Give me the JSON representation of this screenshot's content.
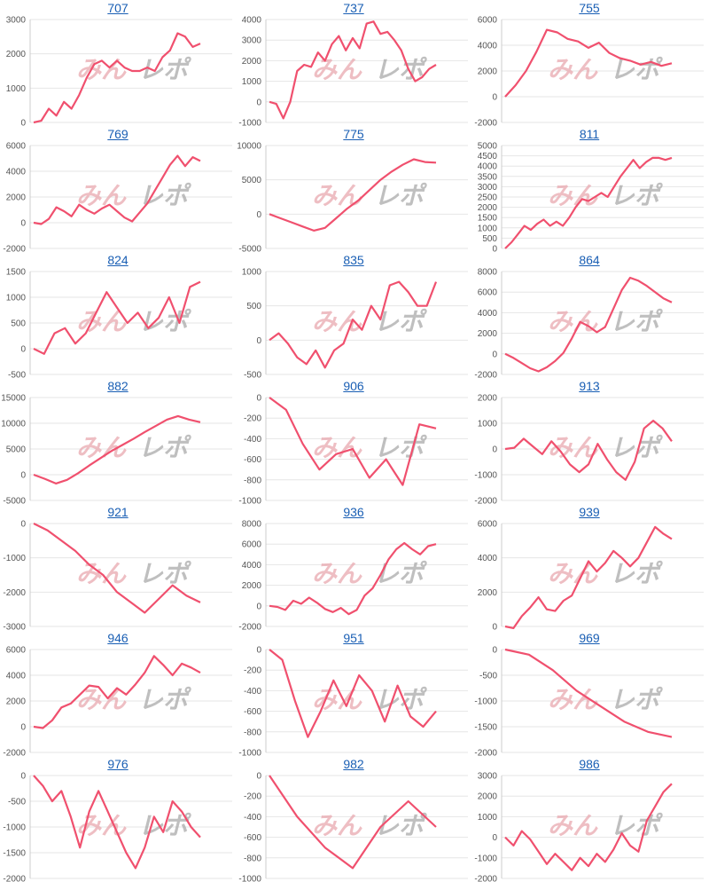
{
  "colors": {
    "line": "#f0506e",
    "grid": "#e6e6e6",
    "axis": "#cccccc",
    "title": "#1a5fb4",
    "watermark_pink": "#e9a9b0",
    "watermark_gray": "#aaaaaa"
  },
  "watermark": {
    "part1": "みん",
    "part2": "レポ"
  },
  "chart_data": [
    {
      "type": "line",
      "title": "707",
      "yticks": [
        0,
        1000,
        2000,
        3000
      ],
      "ylim": [
        0,
        3000
      ],
      "values": [
        0,
        50,
        400,
        200,
        600,
        400,
        800,
        1300,
        1700,
        1800,
        1600,
        1800,
        1600,
        1500,
        1500,
        1600,
        1500,
        1900,
        2100,
        2600,
        2500,
        2200,
        2300
      ]
    },
    {
      "type": "line",
      "title": "737",
      "yticks": [
        -1000,
        0,
        1000,
        2000,
        3000,
        4000
      ],
      "ylim": [
        -1000,
        4000
      ],
      "values": [
        0,
        -100,
        -800,
        0,
        1500,
        1800,
        1700,
        2400,
        2000,
        2800,
        3200,
        2500,
        3100,
        2600,
        3800,
        3900,
        3300,
        3400,
        3000,
        2500,
        1600,
        1000,
        1200,
        1600,
        1800
      ]
    },
    {
      "type": "line",
      "title": "755",
      "yticks": [
        -2000,
        0,
        2000,
        4000,
        6000
      ],
      "ylim": [
        -2000,
        6000
      ],
      "values": [
        0,
        900,
        2000,
        3500,
        5200,
        5000,
        4500,
        4300,
        3800,
        4200,
        3400,
        3000,
        2800,
        2500,
        2700,
        2400,
        2600
      ]
    },
    {
      "type": "line",
      "title": "769",
      "yticks": [
        -2000,
        0,
        2000,
        4000,
        6000
      ],
      "ylim": [
        -2000,
        6000
      ],
      "values": [
        0,
        -100,
        300,
        1200,
        900,
        500,
        1400,
        1000,
        700,
        1100,
        1400,
        900,
        400,
        100,
        800,
        1500,
        2500,
        3500,
        4500,
        5200,
        4400,
        5100,
        4800
      ]
    },
    {
      "type": "line",
      "title": "775",
      "yticks": [
        -5000,
        0,
        5000,
        10000
      ],
      "ylim": [
        -5000,
        10000
      ],
      "values": [
        0,
        -600,
        -1200,
        -1800,
        -2400,
        -2000,
        -600,
        800,
        2000,
        3500,
        5000,
        6200,
        7200,
        8000,
        7600,
        7500
      ]
    },
    {
      "type": "line",
      "title": "811",
      "yticks": [
        0,
        500,
        1000,
        1500,
        2000,
        2500,
        3000,
        3500,
        4000,
        4500,
        5000
      ],
      "ylim": [
        0,
        5000
      ],
      "values": [
        0,
        300,
        700,
        1100,
        900,
        1200,
        1400,
        1100,
        1300,
        1100,
        1500,
        2000,
        2400,
        2300,
        2500,
        2700,
        2500,
        3000,
        3500,
        3900,
        4300,
        3900,
        4200,
        4400,
        4400,
        4300,
        4400
      ]
    },
    {
      "type": "line",
      "title": "824",
      "yticks": [
        -500,
        0,
        500,
        1000,
        1500
      ],
      "ylim": [
        -500,
        1500
      ],
      "values": [
        0,
        -100,
        300,
        400,
        100,
        300,
        700,
        1100,
        800,
        500,
        700,
        400,
        600,
        1000,
        500,
        1200,
        1300
      ]
    },
    {
      "type": "line",
      "title": "835",
      "yticks": [
        -500,
        0,
        500,
        1000
      ],
      "ylim": [
        -500,
        1000
      ],
      "values": [
        0,
        100,
        -50,
        -250,
        -350,
        -150,
        -400,
        -150,
        -50,
        300,
        150,
        500,
        300,
        800,
        850,
        700,
        500,
        500,
        850
      ]
    },
    {
      "type": "line",
      "title": "864",
      "yticks": [
        -2000,
        0,
        2000,
        4000,
        6000,
        8000
      ],
      "ylim": [
        -2000,
        8000
      ],
      "values": [
        0,
        -400,
        -900,
        -1400,
        -1700,
        -1300,
        -700,
        100,
        1500,
        3100,
        2700,
        2100,
        2600,
        4400,
        6200,
        7400,
        7100,
        6600,
        6000,
        5400,
        5000
      ]
    },
    {
      "type": "line",
      "title": "882",
      "yticks": [
        -5000,
        0,
        5000,
        10000,
        15000
      ],
      "ylim": [
        -5000,
        15000
      ],
      "values": [
        0,
        -800,
        -1700,
        -1000,
        300,
        1800,
        3200,
        4600,
        5800,
        7000,
        8300,
        9500,
        10700,
        11400,
        10700,
        10200
      ]
    },
    {
      "type": "line",
      "title": "906",
      "yticks": [
        -1000,
        -800,
        -600,
        -400,
        -200,
        0
      ],
      "ylim": [
        -1000,
        0
      ],
      "values": [
        0,
        -120,
        -450,
        -700,
        -550,
        -500,
        -780,
        -600,
        -850,
        -260,
        -300
      ]
    },
    {
      "type": "line",
      "title": "913",
      "yticks": [
        -2000,
        -1000,
        0,
        1000,
        2000
      ],
      "ylim": [
        -2000,
        2000
      ],
      "values": [
        0,
        50,
        400,
        100,
        -200,
        300,
        -100,
        -600,
        -900,
        -600,
        200,
        -400,
        -900,
        -1200,
        -500,
        800,
        1100,
        800,
        300
      ]
    },
    {
      "type": "line",
      "title": "921",
      "yticks": [
        -3000,
        -2000,
        -1000,
        0
      ],
      "ylim": [
        -3000,
        0
      ],
      "values": [
        0,
        -200,
        -500,
        -800,
        -1200,
        -1500,
        -2000,
        -2300,
        -2600,
        -2200,
        -1800,
        -2100,
        -2300
      ]
    },
    {
      "type": "line",
      "title": "936",
      "yticks": [
        -2000,
        0,
        2000,
        4000,
        6000,
        8000
      ],
      "ylim": [
        -2000,
        8000
      ],
      "values": [
        0,
        -100,
        -400,
        500,
        200,
        800,
        300,
        -300,
        -600,
        -200,
        -800,
        -400,
        1000,
        1700,
        3000,
        4500,
        5500,
        6100,
        5500,
        5000,
        5800,
        6000
      ]
    },
    {
      "type": "line",
      "title": "939",
      "yticks": [
        0,
        2000,
        4000,
        6000
      ],
      "ylim": [
        0,
        6000
      ],
      "values": [
        0,
        -100,
        600,
        1100,
        1700,
        1000,
        900,
        1500,
        1800,
        2800,
        3800,
        3200,
        3700,
        4400,
        4000,
        3500,
        4000,
        4900,
        5800,
        5400,
        5100
      ]
    },
    {
      "type": "line",
      "title": "946",
      "yticks": [
        -2000,
        0,
        2000,
        4000,
        6000
      ],
      "ylim": [
        -2000,
        6000
      ],
      "values": [
        0,
        -100,
        500,
        1500,
        1800,
        2500,
        3200,
        3100,
        2200,
        3000,
        2500,
        3300,
        4200,
        5500,
        4800,
        4000,
        4900,
        4600,
        4200
      ]
    },
    {
      "type": "line",
      "title": "951",
      "yticks": [
        -1000,
        -800,
        -600,
        -400,
        -200,
        0
      ],
      "ylim": [
        -1000,
        0
      ],
      "values": [
        0,
        -100,
        -500,
        -850,
        -600,
        -300,
        -550,
        -250,
        -400,
        -700,
        -350,
        -650,
        -750,
        -600
      ]
    },
    {
      "type": "line",
      "title": "969",
      "yticks": [
        -2000,
        -1500,
        -1000,
        -500,
        0
      ],
      "ylim": [
        -2000,
        0
      ],
      "values": [
        0,
        -100,
        -400,
        -800,
        -1100,
        -1400,
        -1600,
        -1700
      ]
    },
    {
      "type": "line",
      "title": "976",
      "yticks": [
        -2000,
        -1500,
        -1000,
        -500,
        0
      ],
      "ylim": [
        -2000,
        0
      ],
      "values": [
        0,
        -200,
        -500,
        -300,
        -800,
        -1400,
        -700,
        -300,
        -700,
        -1100,
        -1500,
        -1800,
        -1400,
        -800,
        -1100,
        -500,
        -700,
        -1000,
        -1200
      ]
    },
    {
      "type": "line",
      "title": "982",
      "yticks": [
        -1000,
        -800,
        -600,
        -400,
        -200,
        0
      ],
      "ylim": [
        -1000,
        0
      ],
      "values": [
        0,
        -400,
        -700,
        -900,
        -500,
        -250,
        -500
      ]
    },
    {
      "type": "line",
      "title": "986",
      "yticks": [
        -2000,
        -1000,
        0,
        1000,
        2000,
        3000
      ],
      "ylim": [
        -2000,
        3000
      ],
      "values": [
        0,
        -400,
        300,
        -100,
        -700,
        -1300,
        -800,
        -1200,
        -1600,
        -1000,
        -1400,
        -800,
        -1200,
        -600,
        200,
        -400,
        -700,
        800,
        1500,
        2200,
        2600
      ]
    }
  ]
}
